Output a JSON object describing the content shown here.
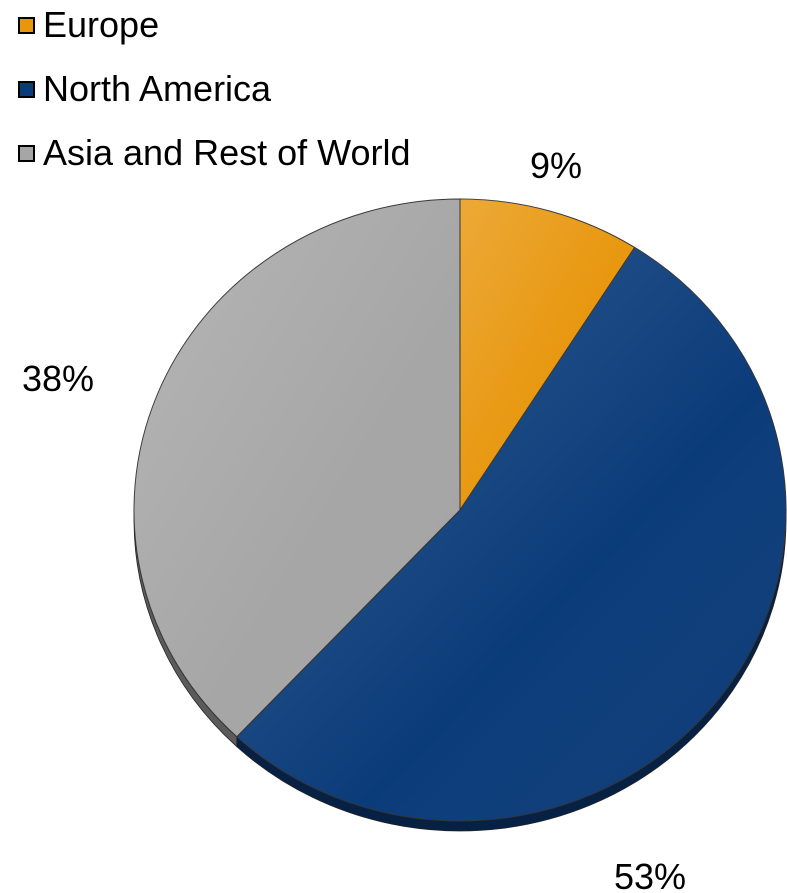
{
  "chart_data": {
    "type": "pie",
    "legend_position": "top-left",
    "start_angle_deg": 0,
    "direction": "clockwise",
    "slices": [
      {
        "label": "Europe",
        "value": 9,
        "display": "9%",
        "color": "#E8960C"
      },
      {
        "label": "North America",
        "value": 53,
        "display": "53%",
        "color": "#0B3C7A"
      },
      {
        "label": "Asia and Rest of World",
        "value": 38,
        "display": "38%",
        "color": "#A6A6A6"
      }
    ]
  }
}
